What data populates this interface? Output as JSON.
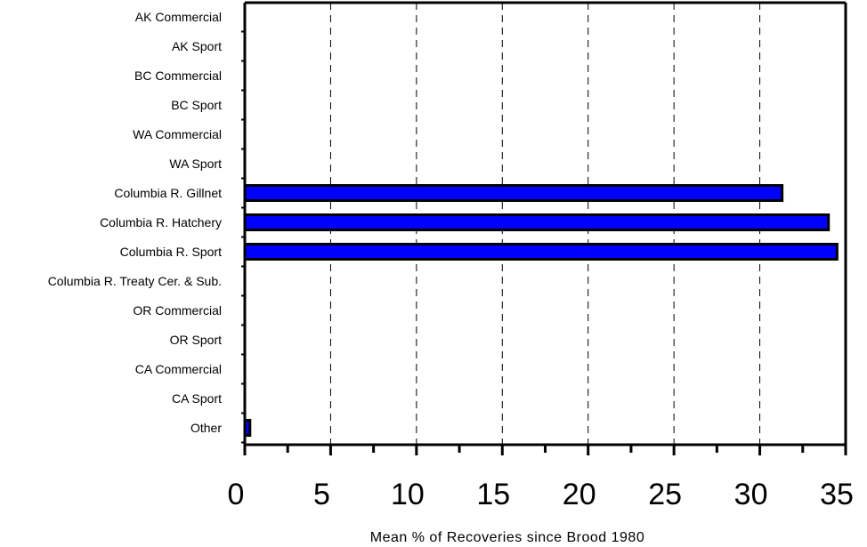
{
  "chart_data": {
    "type": "bar",
    "orientation": "horizontal",
    "title": "",
    "xlabel": "Mean % of Recoveries since Brood 1980",
    "ylabel": "",
    "xlim": [
      0,
      35
    ],
    "x_ticks": [
      0,
      5,
      10,
      15,
      20,
      25,
      30,
      35
    ],
    "x_tick_labels": [
      "0",
      "5",
      "10",
      "15",
      "20",
      "25",
      "30",
      "35"
    ],
    "grid": "vertical dashed at major ticks",
    "legend": "none",
    "bar_color": "#0000ff",
    "categories": [
      "AK Commercial",
      "AK Sport",
      "BC Commercial",
      "BC Sport",
      "WA Commercial",
      "WA Sport",
      "Columbia R. Gillnet",
      "Columbia R. Hatchery",
      "Columbia R. Sport",
      "Columbia R. Treaty Cer. & Sub.",
      "OR Commercial",
      "OR Sport",
      "CA Commercial",
      "CA Sport",
      "Other"
    ],
    "values": [
      0,
      0,
      0,
      0,
      0,
      0,
      31.3,
      34.0,
      34.5,
      0,
      0,
      0,
      0,
      0,
      0.3
    ]
  }
}
